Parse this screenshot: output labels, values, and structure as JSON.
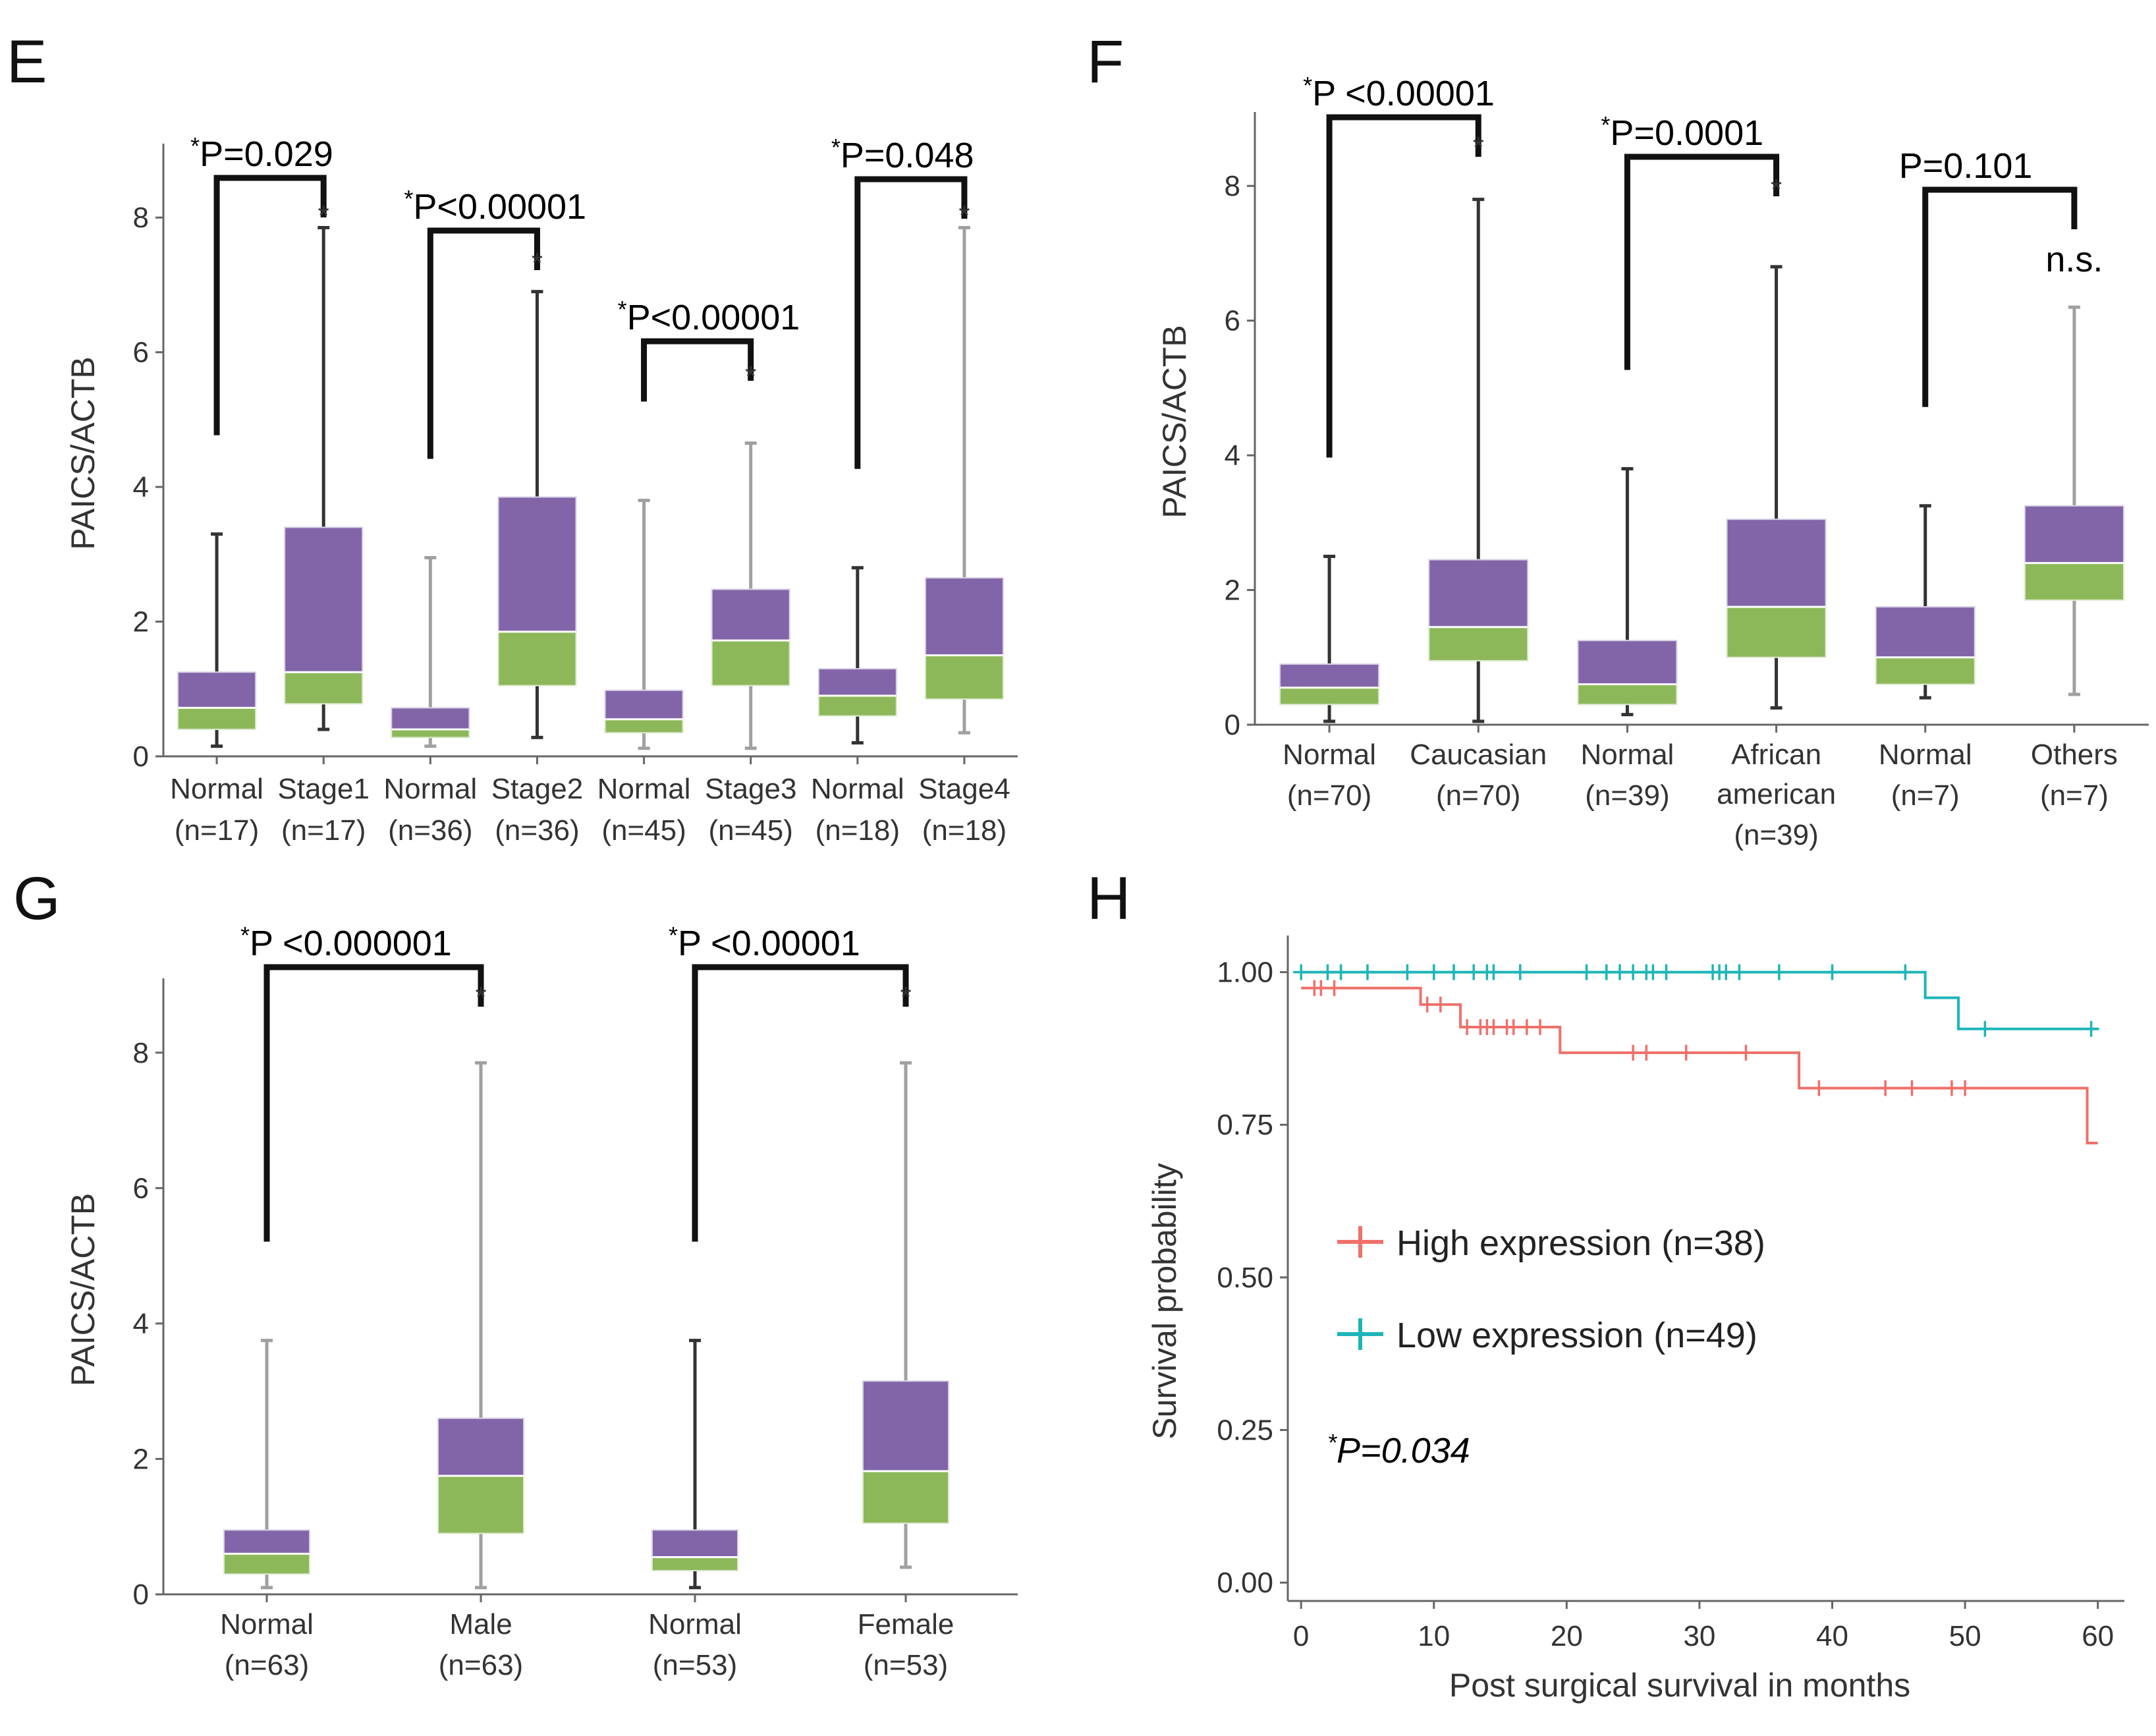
{
  "colors": {
    "upper_box": "#8165A8",
    "lower_box": "#8DB85A",
    "whisker_dark": "#333333",
    "whisker_gray": "#A0A0A0",
    "bracket": "#111111",
    "high": "#F0706A",
    "low": "#1DB5B8",
    "axis": "#666666"
  },
  "chart_data": [
    {
      "panel": "E",
      "type": "box",
      "ylabel": "PAICS/ACTB",
      "ylim": [
        0,
        9
      ],
      "yticks": [
        0,
        2,
        4,
        6,
        8
      ],
      "categories": [
        {
          "name": "Normal",
          "n": "(n=17)"
        },
        {
          "name": "Stage1",
          "n": "(n=17)"
        },
        {
          "name": "Normal",
          "n": "(n=36)"
        },
        {
          "name": "Stage2",
          "n": "(n=36)"
        },
        {
          "name": "Normal",
          "n": "(n=45)"
        },
        {
          "name": "Stage3",
          "n": "(n=45)"
        },
        {
          "name": "Normal",
          "n": "(n=18)"
        },
        {
          "name": "Stage4",
          "n": "(n=18)"
        }
      ],
      "boxes": [
        {
          "min": 0.15,
          "q1": 0.4,
          "median": 0.72,
          "q3": 1.25,
          "max": 3.3,
          "whisker": "dark"
        },
        {
          "min": 0.4,
          "q1": 0.78,
          "median": 1.25,
          "q3": 3.4,
          "max": 7.85,
          "whisker": "dark"
        },
        {
          "min": 0.15,
          "q1": 0.28,
          "median": 0.4,
          "q3": 0.72,
          "max": 2.95,
          "whisker": "gray"
        },
        {
          "min": 0.28,
          "q1": 1.05,
          "median": 1.85,
          "q3": 3.85,
          "max": 6.9,
          "whisker": "dark"
        },
        {
          "min": 0.12,
          "q1": 0.35,
          "median": 0.55,
          "q3": 0.98,
          "max": 3.8,
          "whisker": "gray"
        },
        {
          "min": 0.12,
          "q1": 1.05,
          "median": 1.72,
          "q3": 2.48,
          "max": 4.65,
          "whisker": "gray"
        },
        {
          "min": 0.2,
          "q1": 0.6,
          "median": 0.9,
          "q3": 1.3,
          "max": 2.8,
          "whisker": "dark"
        },
        {
          "min": 0.35,
          "q1": 0.85,
          "median": 1.5,
          "q3": 2.65,
          "max": 7.85,
          "whisker": "gray"
        }
      ],
      "sig_marks": [
        "*",
        "*",
        "*",
        "*"
      ],
      "comparisons": [
        {
          "left": 0,
          "right": 1,
          "star": "*",
          "text": "P=0.029"
        },
        {
          "left": 2,
          "right": 3,
          "star": "*",
          "text": "P<0.00001"
        },
        {
          "left": 4,
          "right": 5,
          "star": "*",
          "text": "P<0.00001"
        },
        {
          "left": 6,
          "right": 7,
          "star": "*",
          "text": "P=0.048"
        }
      ]
    },
    {
      "panel": "F",
      "type": "box",
      "ylabel": "PAICS/ACTB",
      "ylim": [
        0,
        9
      ],
      "yticks": [
        0,
        2,
        4,
        6,
        8
      ],
      "categories": [
        {
          "name": "Normal",
          "n": "(n=70)"
        },
        {
          "name": "Caucasian",
          "n": "(n=70)"
        },
        {
          "name": "Normal",
          "n": "(n=39)"
        },
        {
          "name": "African american",
          "n": "(n=39)"
        },
        {
          "name": "Normal",
          "n": "(n=7)"
        },
        {
          "name": "Others",
          "n": "(n=7)"
        }
      ],
      "boxes": [
        {
          "min": 0.05,
          "q1": 0.3,
          "median": 0.55,
          "q3": 0.9,
          "max": 2.5,
          "whisker": "dark"
        },
        {
          "min": 0.05,
          "q1": 0.95,
          "median": 1.45,
          "q3": 2.45,
          "max": 7.8,
          "whisker": "dark"
        },
        {
          "min": 0.15,
          "q1": 0.3,
          "median": 0.6,
          "q3": 1.25,
          "max": 3.8,
          "whisker": "dark"
        },
        {
          "min": 0.25,
          "q1": 1.0,
          "median": 1.75,
          "q3": 3.05,
          "max": 6.8,
          "whisker": "dark"
        },
        {
          "min": 0.4,
          "q1": 0.6,
          "median": 1.0,
          "q3": 1.75,
          "max": 3.25,
          "whisker": "dark"
        },
        {
          "min": 0.45,
          "q1": 1.85,
          "median": 2.4,
          "q3": 3.25,
          "max": 6.2,
          "whisker": "gray"
        }
      ],
      "sig_marks": [
        "*",
        "*",
        "n.s."
      ],
      "comparisons": [
        {
          "left": 0,
          "right": 1,
          "star": "*",
          "text": "P <0.00001"
        },
        {
          "left": 2,
          "right": 3,
          "star": "*",
          "text": "P=0.0001"
        },
        {
          "left": 4,
          "right": 5,
          "star": "",
          "text": "P=0.101"
        }
      ]
    },
    {
      "panel": "G",
      "type": "box",
      "ylabel": "PAICS/ACTB",
      "ylim": [
        0,
        9
      ],
      "yticks": [
        0,
        2,
        4,
        6,
        8
      ],
      "categories": [
        {
          "name": "Normal",
          "n": "(n=63)"
        },
        {
          "name": "Male",
          "n": "(n=63)"
        },
        {
          "name": "Normal",
          "n": "(n=53)"
        },
        {
          "name": "Female",
          "n": "(n=53)"
        }
      ],
      "boxes": [
        {
          "min": 0.1,
          "q1": 0.3,
          "median": 0.6,
          "q3": 0.95,
          "max": 3.75,
          "whisker": "gray"
        },
        {
          "min": 0.1,
          "q1": 0.9,
          "median": 1.75,
          "q3": 2.6,
          "max": 7.85,
          "whisker": "gray"
        },
        {
          "min": 0.1,
          "q1": 0.35,
          "median": 0.55,
          "q3": 0.95,
          "max": 3.75,
          "whisker": "dark"
        },
        {
          "min": 0.4,
          "q1": 1.05,
          "median": 1.82,
          "q3": 3.15,
          "max": 7.85,
          "whisker": "gray"
        }
      ],
      "sig_marks": [
        "*",
        "*"
      ],
      "comparisons": [
        {
          "left": 0,
          "right": 1,
          "star": "*",
          "text": "P <0.000001"
        },
        {
          "left": 2,
          "right": 3,
          "star": "*",
          "text": "P <0.00001"
        }
      ]
    },
    {
      "panel": "H",
      "type": "line",
      "subtype": "kaplan-meier",
      "xlabel": "Post surgical survival in months",
      "ylabel": "Survival probability",
      "xlim": [
        -1,
        62
      ],
      "ylim": [
        -0.03,
        1.06
      ],
      "xticks": [
        0,
        10,
        20,
        30,
        40,
        50,
        60
      ],
      "yticks": [
        "0.00",
        "0.25",
        "0.50",
        "0.75",
        "1.00"
      ],
      "pvalue": {
        "star": "*",
        "text": "P=0.034"
      },
      "series": [
        {
          "name": "High expression (n=38)",
          "color_key": "high",
          "steps": [
            [
              0,
              0.974
            ],
            [
              9,
              0.947
            ],
            [
              12,
              0.91
            ],
            [
              19.5,
              0.868
            ],
            [
              37.5,
              0.81
            ],
            [
              59.2,
              0.72
            ],
            [
              60,
              0.72
            ]
          ],
          "censor": [
            1,
            1.5,
            2.5,
            9.5,
            10.5,
            12.5,
            13.5,
            14,
            14.5,
            15.5,
            16,
            17,
            18,
            25,
            26,
            29,
            33.5,
            39,
            44,
            46,
            49,
            50
          ]
        },
        {
          "name": "Low expression (n=49)",
          "color_key": "low",
          "steps": [
            [
              0,
              1.0
            ],
            [
              47,
              0.958
            ],
            [
              49.5,
              0.907
            ],
            [
              60,
              0.907
            ]
          ],
          "censor": [
            0,
            2,
            3,
            5,
            8,
            10,
            11.5,
            13,
            14,
            14.5,
            16.5,
            21.5,
            23,
            24,
            25,
            26,
            26.5,
            27.5,
            31,
            31.5,
            32,
            33,
            36,
            40,
            45.5,
            51.5,
            59.5
          ]
        }
      ]
    }
  ]
}
